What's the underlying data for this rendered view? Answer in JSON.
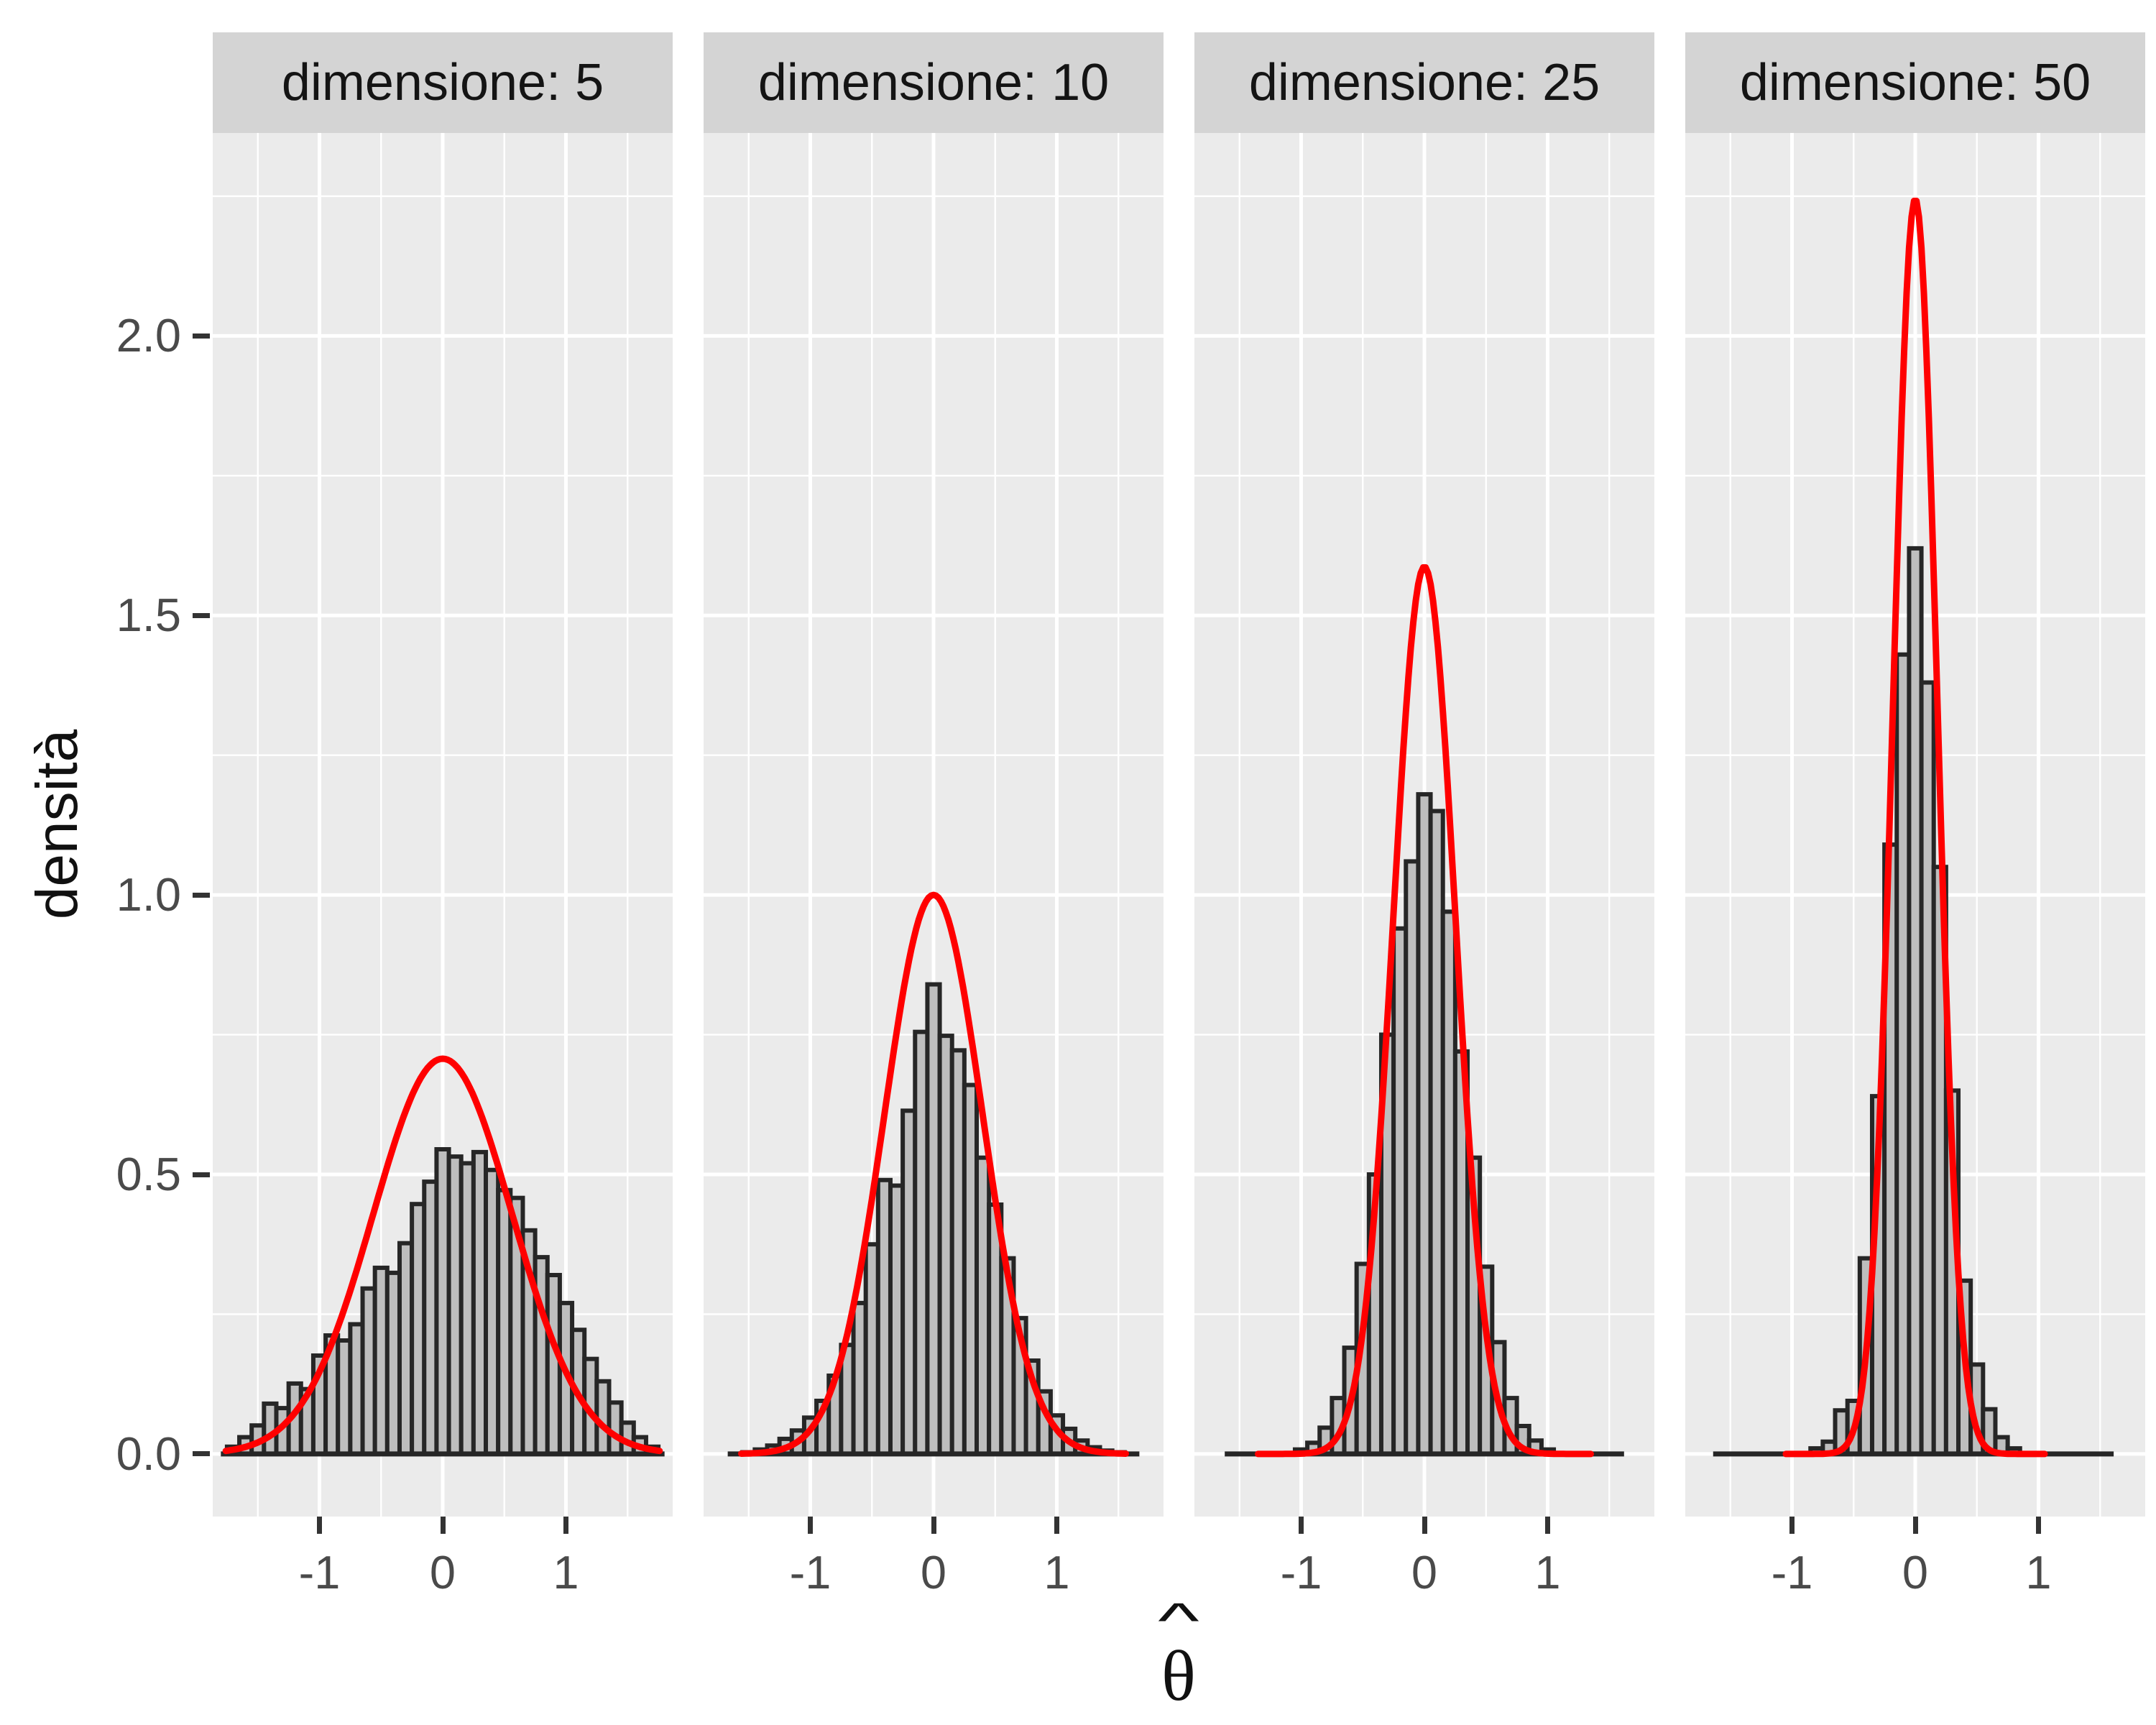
{
  "figure": {
    "background": "#FFFFFF",
    "kind": "faceted histogram with overlaid normal density curves (ggplot2 style)"
  },
  "axes": {
    "y": {
      "title": "densità",
      "tick_values": [
        0.0,
        0.5,
        1.0,
        1.5,
        2.0
      ],
      "tick_labels": [
        "0.0",
        "0.5",
        "1.0",
        "1.5",
        "2.0"
      ]
    },
    "x": {
      "title_unicode": "θ̂",
      "title_base": "θ",
      "title_hat": "^",
      "tick_values": [
        -1,
        0,
        1
      ],
      "tick_labels": [
        "-1",
        "0",
        "1"
      ]
    }
  },
  "style": {
    "panel_bg": "#EBEBEB",
    "strip_bg": "#D4D4D4",
    "grid_color": "#FFFFFF",
    "grid_major_width": 5,
    "grid_minor_width": 2.4,
    "bar_fill": "#BEBEBE",
    "bar_stroke": "#262626",
    "bar_stroke_width": 6,
    "baseline_width": 7,
    "curve_color": "#FF0000",
    "curve_width": 9,
    "tick_mark_color": "#333333",
    "tick_text_color": "#4A4A4A",
    "text_color": "#111111"
  },
  "chart_data": {
    "type": "histogram+density",
    "facet_variable": "dimensione",
    "x_domain": [
      -1.866,
      1.866
    ],
    "y_domain": [
      -0.112,
      2.363
    ],
    "grid": {
      "x_major": [
        -1,
        0,
        1
      ],
      "x_minor": [
        -1.5,
        -0.5,
        0.5,
        1.5
      ],
      "y_major": [
        0,
        0.5,
        1.0,
        1.5,
        2.0
      ],
      "y_minor": [
        0.25,
        0.75,
        1.25,
        1.75,
        2.25
      ]
    },
    "binwidth": 0.1,
    "panels": [
      {
        "label": "dimensione: 5",
        "n": 5,
        "bin_start": -1.75,
        "bar_heights": [
          0.013,
          0.03,
          0.051,
          0.09,
          0.082,
          0.126,
          0.116,
          0.176,
          0.212,
          0.203,
          0.232,
          0.296,
          0.333,
          0.324,
          0.377,
          0.447,
          0.487,
          0.545,
          0.532,
          0.52,
          0.54,
          0.508,
          0.472,
          0.458,
          0.4,
          0.352,
          0.32,
          0.27,
          0.222,
          0.17,
          0.13,
          0.092,
          0.056,
          0.03,
          0.013
        ],
        "baseline_extent": [
          -1.8,
          1.8
        ],
        "curve": {
          "type": "normal",
          "mean": 0,
          "sd": 0.564,
          "peak": 0.707,
          "range": [
            -1.76,
            1.76
          ]
        }
      },
      {
        "label": "dimensione: 10",
        "n": 10,
        "bin_start": -1.55,
        "bar_heights": [
          0.003,
          0.008,
          0.015,
          0.027,
          0.042,
          0.065,
          0.095,
          0.14,
          0.195,
          0.27,
          0.375,
          0.49,
          0.48,
          0.614,
          0.755,
          0.84,
          0.748,
          0.722,
          0.66,
          0.53,
          0.446,
          0.35,
          0.243,
          0.167,
          0.112,
          0.069,
          0.045,
          0.024,
          0.012,
          0.006,
          0.003
        ],
        "baseline_extent": [
          -1.67,
          1.67
        ],
        "curve": {
          "type": "normal",
          "mean": 0,
          "sd": 0.399,
          "peak": 1.0,
          "range": [
            -1.56,
            1.56
          ]
        }
      },
      {
        "label": "dimensione: 25",
        "n": 25,
        "bin_start": -1.05,
        "bar_heights": [
          0.008,
          0.02,
          0.047,
          0.1,
          0.19,
          0.34,
          0.5,
          0.75,
          0.94,
          1.06,
          1.18,
          1.15,
          0.97,
          0.72,
          0.53,
          0.335,
          0.2,
          0.1,
          0.05,
          0.024,
          0.008
        ],
        "baseline_extent": [
          -1.62,
          1.62
        ],
        "curve": {
          "type": "normal",
          "mean": 0,
          "sd": 0.2515,
          "peak": 1.587,
          "range": [
            -1.35,
            1.35
          ]
        }
      },
      {
        "label": "dimensione: 50",
        "n": 50,
        "bin_start": -0.85,
        "bar_heights": [
          0.01,
          0.022,
          0.078,
          0.095,
          0.35,
          0.64,
          1.09,
          1.43,
          1.62,
          1.38,
          1.05,
          0.65,
          0.31,
          0.16,
          0.08,
          0.03,
          0.01
        ],
        "baseline_extent": [
          -1.64,
          1.61
        ],
        "curve": {
          "type": "normal",
          "mean": 0,
          "sd": 0.1777,
          "peak": 2.245,
          "range": [
            -1.05,
            1.05
          ]
        }
      }
    ]
  }
}
